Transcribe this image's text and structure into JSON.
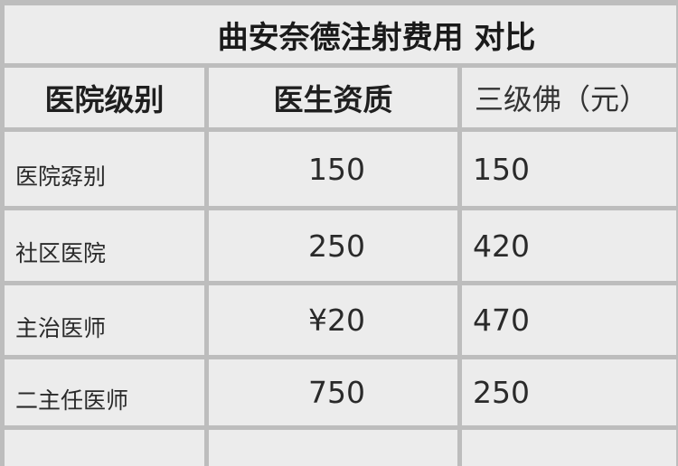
{
  "title": "曲安奈德注射费用 对比",
  "headers": [
    "医院级别",
    "医生资质",
    "三级佛（元）"
  ],
  "rows": [
    [
      "医院孬别",
      "150",
      "150"
    ],
    [
      "社区医院",
      "250",
      "420"
    ],
    [
      "主治医师",
      "¥20",
      "470"
    ],
    [
      "二主任医师",
      "750",
      "250"
    ],
    [
      "",
      "",
      ""
    ]
  ],
  "colors": {
    "border": "#bdbdbd",
    "cell": "#ececec",
    "text": "#2a2a2a"
  }
}
